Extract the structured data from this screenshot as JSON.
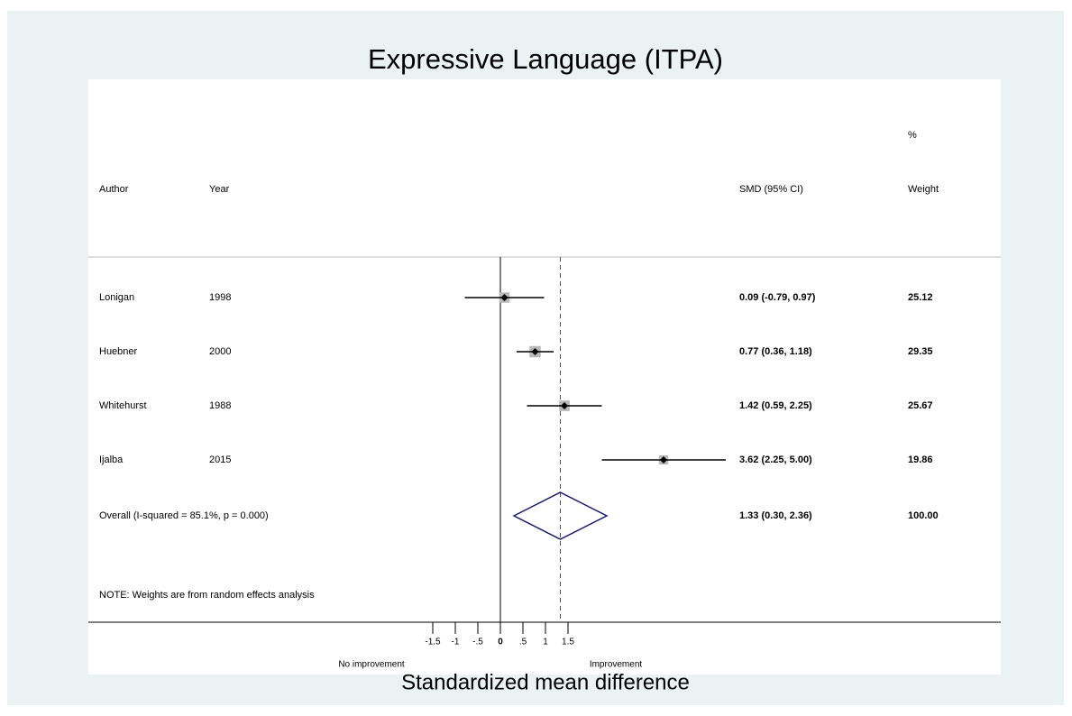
{
  "chart_data": {
    "type": "forest",
    "title": "Expressive Language (ITPA)",
    "x_label": "Standardized mean difference",
    "left_label": "No improvement",
    "right_label": "Improvement",
    "note": "NOTE: Weights are from random effects analysis",
    "columns": {
      "author": "Author",
      "year": "Year",
      "estimate": "SMD (95% CI)",
      "weight_top": "%",
      "weight": "Weight"
    },
    "authors": [
      "Lonigan",
      "Huebner",
      "Whitehurst",
      "Ijalba"
    ],
    "years": [
      "1998",
      "2000",
      "1988",
      "2015"
    ],
    "values": [
      0.09,
      0.77,
      1.42,
      3.62
    ],
    "lower": [
      -0.79,
      0.36,
      0.59,
      2.25
    ],
    "upper": [
      0.97,
      1.18,
      2.25,
      5.0
    ],
    "value_labels": [
      "0.09 (-0.79, 0.97)",
      "0.77 (0.36, 1.18)",
      "1.42 (0.59, 2.25)",
      "3.62 (2.25, 5.00)"
    ],
    "weights": [
      25.12,
      29.35,
      25.67,
      19.86
    ],
    "overall": {
      "label": "Overall  (I-squared = 85.1%, p = 0.000)",
      "value": 1.33,
      "lower": 0.3,
      "upper": 2.36,
      "value_label": "1.33 (0.30, 2.36)",
      "weight": {
        "value": 100,
        "label": "100.00"
      }
    },
    "xlim": [
      -9.14,
      11.1
    ],
    "xticks": [
      -1.5,
      -1,
      {
        "value": -0.5,
        "label": "-.5"
      },
      0,
      {
        "value": 0.5,
        "label": ".5"
      },
      1,
      1.5
    ],
    "colors": {
      "box": "#b8b8b8",
      "ci": "#000000",
      "diamond": "#1a1a6e",
      "overall_line": "#a0322d",
      "title": "#1a2f6b"
    }
  }
}
